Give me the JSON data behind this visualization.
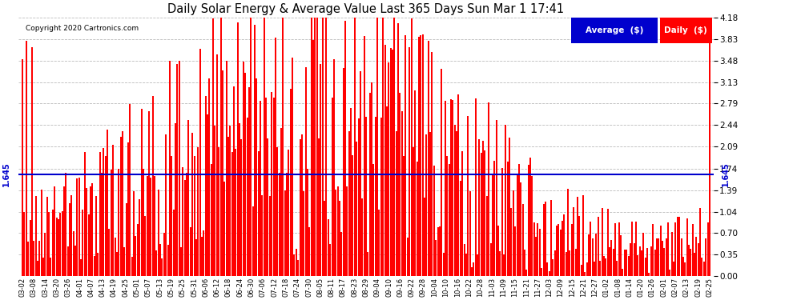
{
  "title": "Daily Solar Energy & Average Value Last 365 Days Sun Mar 1 17:41",
  "copyright": "Copyright 2020 Cartronics.com",
  "average_value": 1.645,
  "ymax": 4.18,
  "ymin": 0.0,
  "yticks": [
    0.0,
    0.35,
    0.7,
    1.04,
    1.39,
    1.74,
    2.09,
    2.44,
    2.79,
    3.13,
    3.48,
    3.83,
    4.18
  ],
  "bar_color": "#ff0000",
  "average_line_color": "#0000cd",
  "background_color": "#ffffff",
  "grid_color": "#bbbbbb",
  "legend_avg_bg": "#0000cd",
  "legend_daily_bg": "#ff0000",
  "legend_text_color": "#ffffff",
  "avg_label_color": "#0000cd",
  "x_tick_labels": [
    "03-02",
    "03-08",
    "03-14",
    "03-20",
    "03-26",
    "04-01",
    "04-07",
    "04-13",
    "04-19",
    "04-25",
    "05-01",
    "05-07",
    "05-13",
    "05-19",
    "05-25",
    "05-31",
    "06-06",
    "06-12",
    "06-18",
    "06-24",
    "06-30",
    "07-06",
    "07-12",
    "07-18",
    "07-24",
    "07-30",
    "08-05",
    "08-11",
    "08-17",
    "08-23",
    "08-29",
    "09-04",
    "09-10",
    "09-16",
    "09-22",
    "09-28",
    "10-04",
    "10-10",
    "10-16",
    "10-22",
    "10-28",
    "11-03",
    "11-09",
    "11-15",
    "11-21",
    "11-27",
    "12-03",
    "12-09",
    "12-15",
    "12-21",
    "12-27",
    "01-02",
    "01-08",
    "01-14",
    "01-20",
    "01-26",
    "02-01",
    "02-07",
    "02-13",
    "02-19",
    "02-25"
  ],
  "n_days": 365
}
